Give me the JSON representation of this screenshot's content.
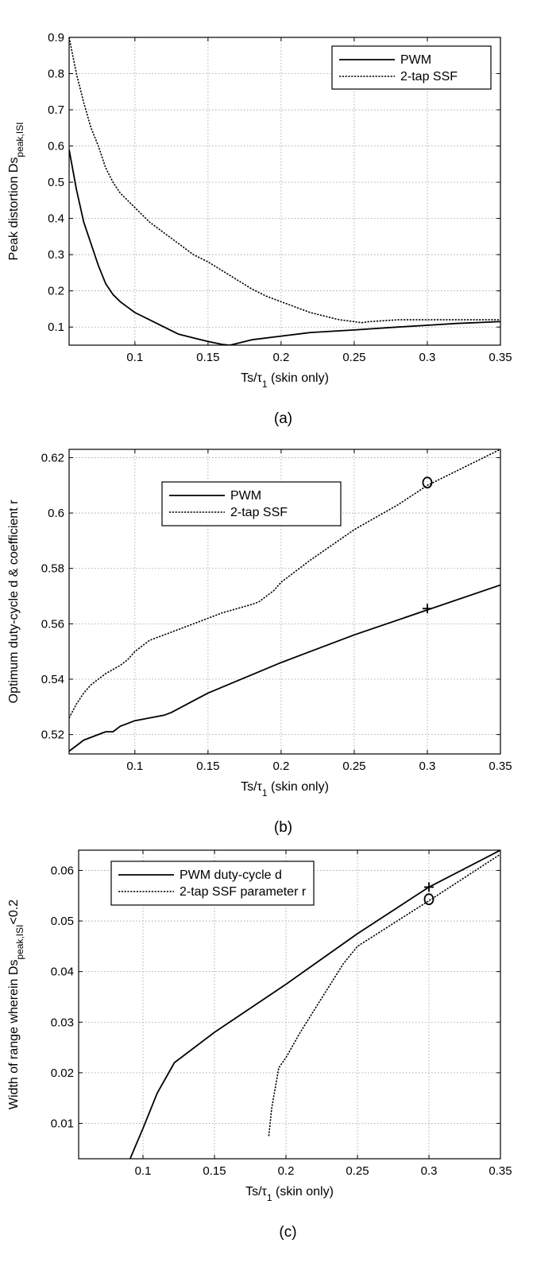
{
  "chart_data": [
    {
      "type": "line",
      "panel_label": "(a)",
      "xlabel": {
        "main": "Ts/τ",
        "sub": "1",
        "tail": " (skin only)"
      },
      "ylabel": {
        "main": "Peak distortion Ds",
        "sub": "peak,ISI",
        "tail": ""
      },
      "xlim": [
        0.055,
        0.35
      ],
      "ylim": [
        0.05,
        0.9
      ],
      "xticks": [
        0.1,
        0.15,
        0.2,
        0.25,
        0.3,
        0.35
      ],
      "xtick_labels": [
        "0.1",
        "0.15",
        "0.2",
        "0.25",
        "0.3",
        "0.35"
      ],
      "yticks": [
        0.1,
        0.2,
        0.3,
        0.4,
        0.5,
        0.6,
        0.7,
        0.8,
        0.9
      ],
      "ytick_labels": [
        "0.1",
        "0.2",
        "0.3",
        "0.4",
        "0.5",
        "0.6",
        "0.7",
        "0.8",
        "0.9"
      ],
      "grid": true,
      "legend": "top-right",
      "series": [
        {
          "name": "PWM",
          "style": "solid",
          "x": [
            0.055,
            0.06,
            0.065,
            0.07,
            0.075,
            0.08,
            0.085,
            0.09,
            0.095,
            0.1,
            0.11,
            0.12,
            0.125,
            0.13,
            0.14,
            0.15,
            0.16,
            0.165,
            0.17,
            0.18,
            0.2,
            0.22,
            0.25,
            0.28,
            0.3,
            0.32,
            0.35
          ],
          "y": [
            0.59,
            0.48,
            0.39,
            0.33,
            0.27,
            0.22,
            0.19,
            0.17,
            0.155,
            0.14,
            0.12,
            0.1,
            0.09,
            0.08,
            0.07,
            0.06,
            0.052,
            0.05,
            0.055,
            0.065,
            0.075,
            0.085,
            0.092,
            0.1,
            0.105,
            0.11,
            0.115
          ]
        },
        {
          "name": "2-tap SSF",
          "style": "dashed",
          "x": [
            0.055,
            0.06,
            0.065,
            0.07,
            0.075,
            0.08,
            0.085,
            0.09,
            0.095,
            0.1,
            0.11,
            0.12,
            0.13,
            0.14,
            0.15,
            0.16,
            0.17,
            0.18,
            0.19,
            0.2,
            0.21,
            0.22,
            0.23,
            0.24,
            0.25,
            0.255,
            0.26,
            0.28,
            0.3,
            0.32,
            0.35
          ],
          "y": [
            0.9,
            0.8,
            0.72,
            0.65,
            0.6,
            0.54,
            0.5,
            0.47,
            0.45,
            0.43,
            0.39,
            0.36,
            0.33,
            0.3,
            0.28,
            0.255,
            0.23,
            0.205,
            0.185,
            0.17,
            0.155,
            0.14,
            0.13,
            0.12,
            0.115,
            0.112,
            0.115,
            0.12,
            0.12,
            0.12,
            0.12
          ]
        }
      ]
    },
    {
      "type": "line",
      "panel_label": "(b)",
      "xlabel": {
        "main": "Ts/τ",
        "sub": "1",
        "tail": " (skin only)"
      },
      "ylabel": {
        "main": "Optimum duty-cycle d & coefficient r",
        "sub": "",
        "tail": ""
      },
      "xlim": [
        0.055,
        0.35
      ],
      "ylim": [
        0.513,
        0.623
      ],
      "xticks": [
        0.1,
        0.15,
        0.2,
        0.25,
        0.3,
        0.35
      ],
      "xtick_labels": [
        "0.1",
        "0.15",
        "0.2",
        "0.25",
        "0.3",
        "0.35"
      ],
      "yticks": [
        0.52,
        0.54,
        0.56,
        0.58,
        0.6,
        0.62
      ],
      "ytick_labels": [
        "0.52",
        "0.54",
        "0.56",
        "0.58",
        "0.6",
        "0.62"
      ],
      "grid": true,
      "legend": "top-left",
      "series": [
        {
          "name": "PWM",
          "style": "solid",
          "x": [
            0.055,
            0.06,
            0.065,
            0.07,
            0.08,
            0.085,
            0.09,
            0.1,
            0.11,
            0.12,
            0.125,
            0.15,
            0.2,
            0.25,
            0.3,
            0.35
          ],
          "y": [
            0.514,
            0.516,
            0.518,
            0.519,
            0.521,
            0.521,
            0.523,
            0.525,
            0.526,
            0.527,
            0.528,
            0.535,
            0.546,
            0.556,
            0.565,
            0.574
          ]
        },
        {
          "name": "2-tap SSF",
          "style": "dashed",
          "x": [
            0.055,
            0.06,
            0.065,
            0.07,
            0.08,
            0.09,
            0.095,
            0.1,
            0.11,
            0.12,
            0.14,
            0.16,
            0.18,
            0.185,
            0.19,
            0.195,
            0.2,
            0.22,
            0.25,
            0.28,
            0.3,
            0.35
          ],
          "y": [
            0.526,
            0.531,
            0.535,
            0.538,
            0.542,
            0.545,
            0.547,
            0.55,
            0.554,
            0.556,
            0.56,
            0.564,
            0.567,
            0.568,
            0.57,
            0.572,
            0.575,
            0.583,
            0.594,
            0.603,
            0.61,
            0.623
          ]
        }
      ],
      "markers": [
        {
          "symbol": "o",
          "x": 0.3,
          "y": 0.611
        },
        {
          "symbol": "+",
          "x": 0.3,
          "y": 0.5655
        }
      ]
    },
    {
      "type": "line",
      "panel_label": "(c)",
      "xlabel": {
        "main": "Ts/τ",
        "sub": "1",
        "tail": " (skin only)"
      },
      "ylabel": {
        "main": "Width of range wherein Ds",
        "sub": "peak,ISI",
        "tail": "<0.2"
      },
      "xlim": [
        0.055,
        0.35
      ],
      "ylim": [
        0.003,
        0.064
      ],
      "xticks": [
        0.1,
        0.15,
        0.2,
        0.25,
        0.3,
        0.35
      ],
      "xtick_labels": [
        "0.1",
        "0.15",
        "0.2",
        "0.25",
        "0.3",
        "0.35"
      ],
      "yticks": [
        0.01,
        0.02,
        0.03,
        0.04,
        0.05,
        0.06
      ],
      "ytick_labels": [
        "0.01",
        "0.02",
        "0.03",
        "0.04",
        "0.05",
        "0.06"
      ],
      "grid": true,
      "legend": "top-left",
      "series": [
        {
          "name": "PWM duty-cycle d",
          "style": "solid",
          "x": [
            0.091,
            0.1,
            0.11,
            0.12,
            0.122,
            0.15,
            0.2,
            0.25,
            0.3,
            0.35
          ],
          "y": [
            0.003,
            0.009,
            0.016,
            0.021,
            0.022,
            0.028,
            0.0375,
            0.0475,
            0.0567,
            0.064
          ]
        },
        {
          "name": "2-tap SSF parameter r",
          "style": "dashed",
          "x": [
            0.188,
            0.19,
            0.195,
            0.2,
            0.21,
            0.22,
            0.23,
            0.24,
            0.25,
            0.3,
            0.35
          ],
          "y": [
            0.0075,
            0.013,
            0.021,
            0.023,
            0.028,
            0.0325,
            0.037,
            0.0415,
            0.045,
            0.054,
            0.0632
          ]
        }
      ],
      "markers": [
        {
          "symbol": "+",
          "x": 0.3,
          "y": 0.0567
        },
        {
          "symbol": "o",
          "x": 0.3,
          "y": 0.0543
        }
      ]
    }
  ]
}
